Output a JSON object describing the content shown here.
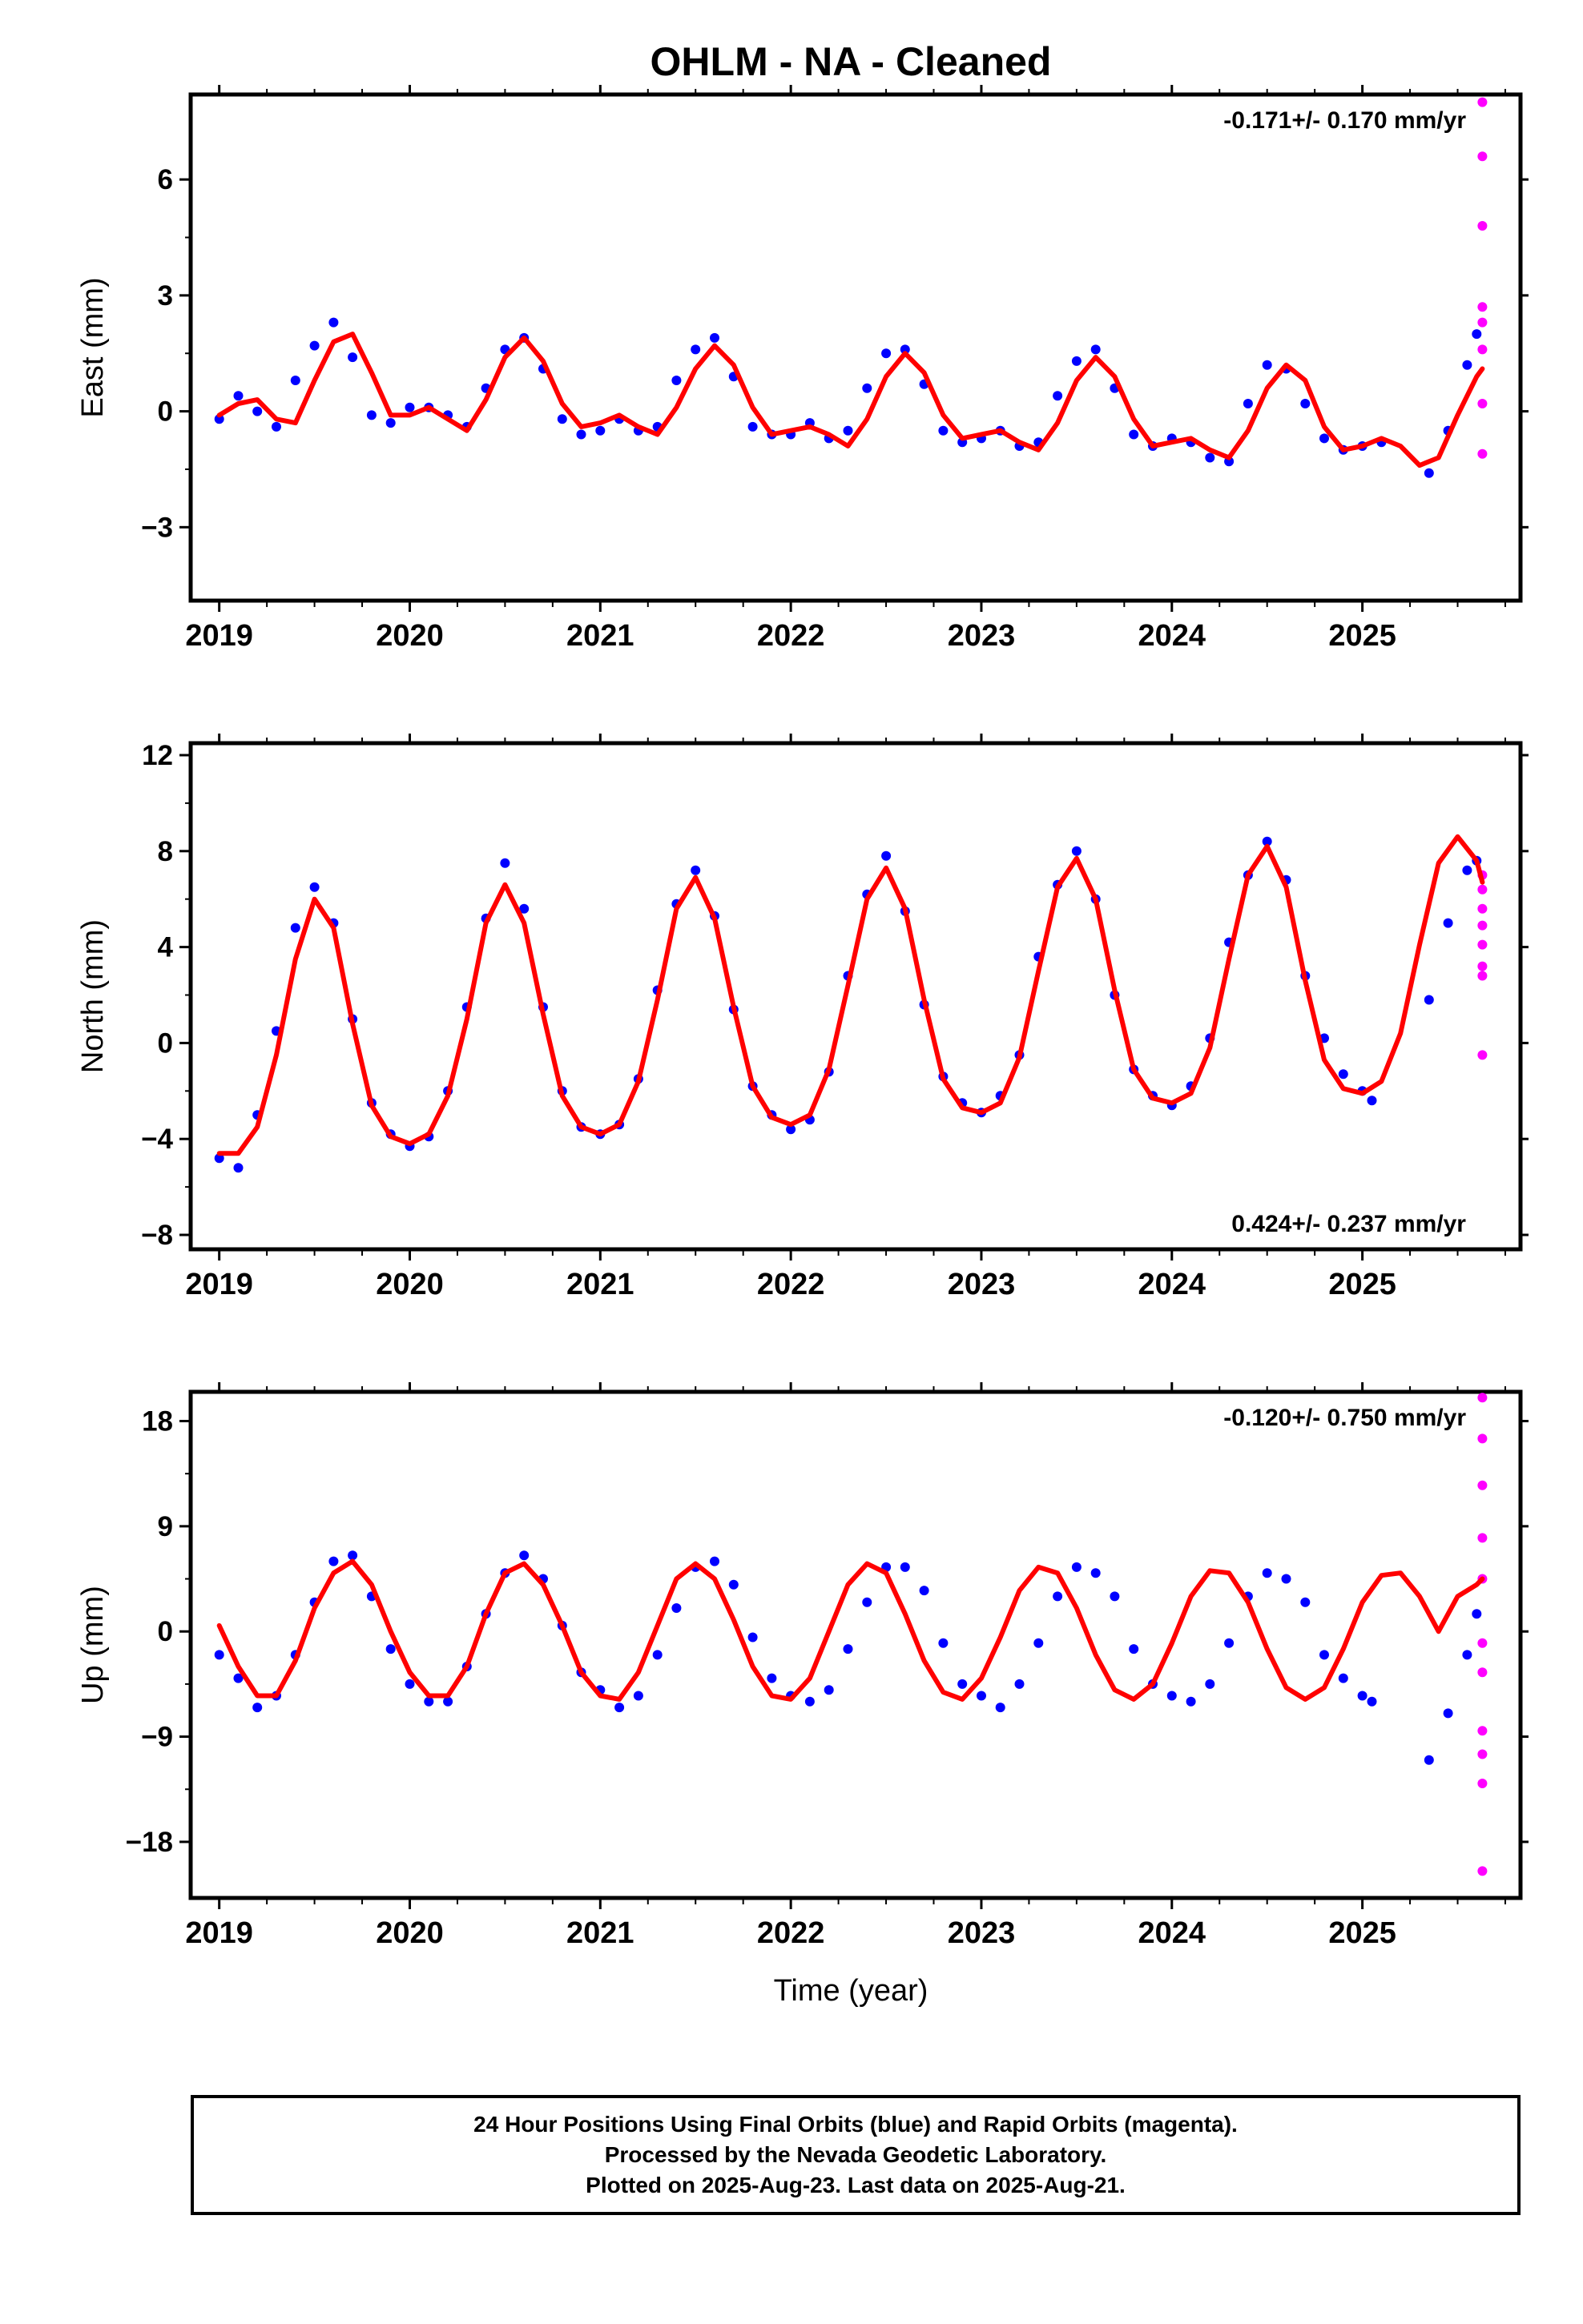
{
  "chart_data": [
    {
      "type": "scatter",
      "title": "OHLM  - NA - Cleaned",
      "ylabel": "East (mm)",
      "xlabel": "",
      "rate_label": "-0.171+/- 0.170 mm/yr",
      "xlim": [
        2018.85,
        2025.83
      ],
      "ylim": [
        -4.9,
        8.2
      ],
      "yticks": [
        -3,
        0,
        3,
        6
      ],
      "ytick_labels": [
        "−3",
        "0",
        "3",
        "6"
      ],
      "xticks": [
        2019,
        2020,
        2021,
        2022,
        2023,
        2024,
        2025
      ],
      "xtick_labels": [
        "2019",
        "2020",
        "2021",
        "2022",
        "2023",
        "2024",
        "2025"
      ],
      "series": [
        {
          "name": "Final Orbits",
          "color": "#0000ff",
          "x": [
            2019.0,
            2019.1,
            2019.2,
            2019.3,
            2019.4,
            2019.5,
            2019.6,
            2019.7,
            2019.8,
            2019.9,
            2020.0,
            2020.1,
            2020.2,
            2020.3,
            2020.4,
            2020.5,
            2020.6,
            2020.7,
            2020.8,
            2020.9,
            2021.0,
            2021.1,
            2021.2,
            2021.3,
            2021.4,
            2021.5,
            2021.6,
            2021.7,
            2021.8,
            2021.9,
            2022.0,
            2022.1,
            2022.2,
            2022.3,
            2022.4,
            2022.5,
            2022.6,
            2022.7,
            2022.8,
            2022.9,
            2023.0,
            2023.1,
            2023.2,
            2023.3,
            2023.4,
            2023.5,
            2023.6,
            2023.7,
            2023.8,
            2023.9,
            2024.0,
            2024.1,
            2024.2,
            2024.3,
            2024.4,
            2024.5,
            2024.6,
            2024.7,
            2024.8,
            2024.9,
            2025.0,
            2025.1,
            2025.35,
            2025.45,
            2025.55,
            2025.6
          ],
          "y": [
            -0.2,
            0.4,
            0.0,
            -0.4,
            0.8,
            1.7,
            2.3,
            1.4,
            -0.1,
            -0.3,
            0.1,
            0.1,
            -0.1,
            -0.4,
            0.6,
            1.6,
            1.9,
            1.1,
            -0.2,
            -0.6,
            -0.5,
            -0.2,
            -0.5,
            -0.4,
            0.8,
            1.6,
            1.9,
            0.9,
            -0.4,
            -0.6,
            -0.6,
            -0.3,
            -0.7,
            -0.5,
            0.6,
            1.5,
            1.6,
            0.7,
            -0.5,
            -0.8,
            -0.7,
            -0.5,
            -0.9,
            -0.8,
            0.4,
            1.3,
            1.6,
            0.6,
            -0.6,
            -0.9,
            -0.7,
            -0.8,
            -1.2,
            -1.3,
            0.2,
            1.2,
            1.1,
            0.2,
            -0.7,
            -1.0,
            -0.9,
            -0.8,
            -1.6,
            -0.5,
            1.2,
            2.0
          ]
        },
        {
          "name": "Rapid Orbits",
          "color": "#ff00ff",
          "x": [
            2025.63,
            2025.63,
            2025.63,
            2025.63,
            2025.63,
            2025.63,
            2025.63,
            2025.63
          ],
          "y": [
            8.0,
            6.6,
            4.8,
            2.7,
            2.3,
            1.6,
            0.2,
            -1.1
          ]
        },
        {
          "name": "Model",
          "color": "#ff0000",
          "x": [
            2019.0,
            2019.1,
            2019.2,
            2019.3,
            2019.4,
            2019.5,
            2019.6,
            2019.7,
            2019.8,
            2019.9,
            2020.0,
            2020.1,
            2020.2,
            2020.3,
            2020.4,
            2020.5,
            2020.6,
            2020.7,
            2020.8,
            2020.9,
            2021.0,
            2021.1,
            2021.2,
            2021.3,
            2021.4,
            2021.5,
            2021.6,
            2021.7,
            2021.8,
            2021.9,
            2022.0,
            2022.1,
            2022.2,
            2022.3,
            2022.4,
            2022.5,
            2022.6,
            2022.7,
            2022.8,
            2022.9,
            2023.0,
            2023.1,
            2023.2,
            2023.3,
            2023.4,
            2023.5,
            2023.6,
            2023.7,
            2023.8,
            2023.9,
            2024.0,
            2024.1,
            2024.2,
            2024.3,
            2024.4,
            2024.5,
            2024.6,
            2024.7,
            2024.8,
            2024.9,
            2025.0,
            2025.1,
            2025.2,
            2025.3,
            2025.4,
            2025.5,
            2025.6,
            2025.63
          ],
          "y": [
            -0.1,
            0.2,
            0.3,
            -0.2,
            -0.3,
            0.8,
            1.8,
            2.0,
            1.0,
            -0.1,
            -0.1,
            0.1,
            -0.2,
            -0.5,
            0.3,
            1.4,
            1.9,
            1.3,
            0.2,
            -0.4,
            -0.3,
            -0.1,
            -0.4,
            -0.6,
            0.1,
            1.1,
            1.7,
            1.2,
            0.1,
            -0.6,
            -0.5,
            -0.4,
            -0.6,
            -0.9,
            -0.2,
            0.9,
            1.5,
            1.0,
            -0.1,
            -0.7,
            -0.6,
            -0.5,
            -0.8,
            -1.0,
            -0.3,
            0.8,
            1.4,
            0.9,
            -0.2,
            -0.9,
            -0.8,
            -0.7,
            -1.0,
            -1.2,
            -0.5,
            0.6,
            1.2,
            0.8,
            -0.4,
            -1.0,
            -0.9,
            -0.7,
            -0.9,
            -1.4,
            -1.2,
            -0.1,
            0.9,
            1.1
          ]
        }
      ]
    },
    {
      "type": "scatter",
      "title": "",
      "ylabel": "North (mm)",
      "xlabel": "",
      "rate_label": "0.424+/- 0.237 mm/yr",
      "xlim": [
        2018.85,
        2025.83
      ],
      "ylim": [
        -8.6,
        12.5
      ],
      "yticks": [
        -8,
        -4,
        0,
        4,
        8,
        12
      ],
      "ytick_labels": [
        "−8",
        "−4",
        "0",
        "4",
        "8",
        "12"
      ],
      "xticks": [
        2019,
        2020,
        2021,
        2022,
        2023,
        2024,
        2025
      ],
      "xtick_labels": [
        "2019",
        "2020",
        "2021",
        "2022",
        "2023",
        "2024",
        "2025"
      ],
      "series": [
        {
          "name": "Final Orbits",
          "color": "#0000ff",
          "x": [
            2019.0,
            2019.1,
            2019.2,
            2019.3,
            2019.4,
            2019.5,
            2019.6,
            2019.7,
            2019.8,
            2019.9,
            2020.0,
            2020.1,
            2020.2,
            2020.3,
            2020.4,
            2020.5,
            2020.6,
            2020.7,
            2020.8,
            2020.9,
            2021.0,
            2021.1,
            2021.2,
            2021.3,
            2021.4,
            2021.5,
            2021.6,
            2021.7,
            2021.8,
            2021.9,
            2022.0,
            2022.1,
            2022.2,
            2022.3,
            2022.4,
            2022.5,
            2022.6,
            2022.7,
            2022.8,
            2022.9,
            2023.0,
            2023.1,
            2023.2,
            2023.3,
            2023.4,
            2023.5,
            2023.6,
            2023.7,
            2023.8,
            2023.9,
            2024.0,
            2024.1,
            2024.2,
            2024.3,
            2024.4,
            2024.5,
            2024.6,
            2024.7,
            2024.8,
            2024.9,
            2025.0,
            2025.05,
            2025.35,
            2025.45,
            2025.55,
            2025.6
          ],
          "y": [
            -4.8,
            -5.2,
            -3.0,
            0.5,
            4.8,
            6.5,
            5.0,
            1.0,
            -2.5,
            -3.8,
            -4.3,
            -3.9,
            -2.0,
            1.5,
            5.2,
            7.5,
            5.6,
            1.5,
            -2.0,
            -3.5,
            -3.8,
            -3.4,
            -1.5,
            2.2,
            5.8,
            7.2,
            5.3,
            1.4,
            -1.8,
            -3.0,
            -3.6,
            -3.2,
            -1.2,
            2.8,
            6.2,
            7.8,
            5.5,
            1.6,
            -1.4,
            -2.5,
            -2.9,
            -2.2,
            -0.5,
            3.6,
            6.6,
            8.0,
            6.0,
            2.0,
            -1.1,
            -2.2,
            -2.6,
            -1.8,
            0.2,
            4.2,
            7.0,
            8.4,
            6.8,
            2.8,
            0.2,
            -1.3,
            -2.0,
            -2.4,
            1.8,
            5.0,
            7.2,
            7.6
          ]
        },
        {
          "name": "Rapid Orbits",
          "color": "#ff00ff",
          "x": [
            2025.63,
            2025.63,
            2025.63,
            2025.63,
            2025.63,
            2025.63,
            2025.63,
            2025.63
          ],
          "y": [
            7.0,
            6.4,
            5.6,
            4.9,
            4.1,
            3.2,
            2.8,
            -0.5
          ]
        },
        {
          "name": "Model",
          "color": "#ff0000",
          "x": [
            2019.0,
            2019.1,
            2019.2,
            2019.3,
            2019.4,
            2019.5,
            2019.6,
            2019.7,
            2019.8,
            2019.9,
            2020.0,
            2020.1,
            2020.2,
            2020.3,
            2020.4,
            2020.5,
            2020.6,
            2020.7,
            2020.8,
            2020.9,
            2021.0,
            2021.1,
            2021.2,
            2021.3,
            2021.4,
            2021.5,
            2021.6,
            2021.7,
            2021.8,
            2021.9,
            2022.0,
            2022.1,
            2022.2,
            2022.3,
            2022.4,
            2022.5,
            2022.6,
            2022.7,
            2022.8,
            2022.9,
            2023.0,
            2023.1,
            2023.2,
            2023.3,
            2023.4,
            2023.5,
            2023.6,
            2023.7,
            2023.8,
            2023.9,
            2024.0,
            2024.1,
            2024.2,
            2024.3,
            2024.4,
            2024.5,
            2024.6,
            2024.7,
            2024.8,
            2024.9,
            2025.0,
            2025.1,
            2025.2,
            2025.3,
            2025.4,
            2025.5,
            2025.6,
            2025.63
          ],
          "y": [
            -4.6,
            -4.6,
            -3.5,
            -0.5,
            3.5,
            6.0,
            4.8,
            0.8,
            -2.6,
            -3.9,
            -4.2,
            -3.8,
            -2.2,
            1.0,
            5.0,
            6.6,
            5.0,
            1.2,
            -2.2,
            -3.5,
            -3.8,
            -3.4,
            -1.6,
            1.8,
            5.6,
            6.9,
            5.2,
            1.5,
            -1.8,
            -3.1,
            -3.4,
            -3.0,
            -1.1,
            2.4,
            6.0,
            7.3,
            5.6,
            1.8,
            -1.5,
            -2.7,
            -2.9,
            -2.5,
            -0.6,
            3.0,
            6.5,
            7.7,
            6.0,
            2.2,
            -1.1,
            -2.3,
            -2.5,
            -2.1,
            -0.2,
            3.5,
            7.0,
            8.2,
            6.5,
            2.6,
            -0.7,
            -1.9,
            -2.1,
            -1.6,
            0.4,
            4.1,
            7.5,
            8.6,
            7.6,
            6.7
          ]
        }
      ]
    },
    {
      "type": "scatter",
      "title": "",
      "ylabel": "Up (mm)",
      "xlabel": "Time (year)",
      "rate_label": "-0.120+/- 0.750 mm/yr",
      "xlim": [
        2018.85,
        2025.83
      ],
      "ylim": [
        -22.8,
        20.5
      ],
      "yticks": [
        -18,
        -9,
        0,
        9,
        18
      ],
      "ytick_labels": [
        "−18",
        "−9",
        "0",
        "9",
        "18"
      ],
      "xticks": [
        2019,
        2020,
        2021,
        2022,
        2023,
        2024,
        2025
      ],
      "xtick_labels": [
        "2019",
        "2020",
        "2021",
        "2022",
        "2023",
        "2024",
        "2025"
      ],
      "series": [
        {
          "name": "Final Orbits",
          "color": "#0000ff",
          "x": [
            2019.0,
            2019.1,
            2019.2,
            2019.3,
            2019.4,
            2019.5,
            2019.6,
            2019.7,
            2019.8,
            2019.9,
            2020.0,
            2020.1,
            2020.2,
            2020.3,
            2020.4,
            2020.5,
            2020.6,
            2020.7,
            2020.8,
            2020.9,
            2021.0,
            2021.1,
            2021.2,
            2021.3,
            2021.4,
            2021.5,
            2021.6,
            2021.7,
            2021.8,
            2021.9,
            2022.0,
            2022.1,
            2022.2,
            2022.3,
            2022.4,
            2022.5,
            2022.6,
            2022.7,
            2022.8,
            2022.9,
            2023.0,
            2023.1,
            2023.2,
            2023.3,
            2023.4,
            2023.5,
            2023.6,
            2023.7,
            2023.8,
            2023.9,
            2024.0,
            2024.1,
            2024.2,
            2024.3,
            2024.4,
            2024.5,
            2024.6,
            2024.7,
            2024.8,
            2024.9,
            2025.0,
            2025.05,
            2025.35,
            2025.45,
            2025.55,
            2025.6
          ],
          "y": [
            -2.0,
            -4.0,
            -6.5,
            -5.5,
            -2.0,
            2.5,
            6.0,
            6.5,
            3.0,
            -1.5,
            -4.5,
            -6.0,
            -6.0,
            -3.0,
            1.5,
            5.0,
            6.5,
            4.5,
            0.5,
            -3.5,
            -5.0,
            -6.5,
            -5.5,
            -2.0,
            2.0,
            5.5,
            6.0,
            4.0,
            -0.5,
            -4.0,
            -5.5,
            -6.0,
            -5.0,
            -1.5,
            2.5,
            5.5,
            5.5,
            3.5,
            -1.0,
            -4.5,
            -5.5,
            -6.5,
            -4.5,
            -1.0,
            3.0,
            5.5,
            5.0,
            3.0,
            -1.5,
            -4.5,
            -5.5,
            -6.0,
            -4.5,
            -1.0,
            3.0,
            5.0,
            4.5,
            2.5,
            -2.0,
            -4.0,
            -5.5,
            -6.0,
            -11.0,
            -7.0,
            -2.0,
            1.5
          ]
        },
        {
          "name": "Rapid Orbits",
          "color": "#ff00ff",
          "x": [
            2025.63,
            2025.63,
            2025.63,
            2025.63,
            2025.63,
            2025.63,
            2025.63,
            2025.63,
            2025.63,
            2025.63,
            2025.63
          ],
          "y": [
            20.0,
            16.5,
            12.5,
            8.0,
            4.5,
            -3.5,
            -8.5,
            -10.5,
            -13.0,
            -20.5,
            -1.0
          ]
        },
        {
          "name": "Model",
          "color": "#ff0000",
          "x": [
            2019.0,
            2019.1,
            2019.2,
            2019.3,
            2019.4,
            2019.5,
            2019.6,
            2019.7,
            2019.8,
            2019.9,
            2020.0,
            2020.1,
            2020.2,
            2020.3,
            2020.4,
            2020.5,
            2020.6,
            2020.7,
            2020.8,
            2020.9,
            2021.0,
            2021.1,
            2021.2,
            2021.3,
            2021.4,
            2021.5,
            2021.6,
            2021.7,
            2021.8,
            2021.9,
            2022.0,
            2022.1,
            2022.2,
            2022.3,
            2022.4,
            2022.5,
            2022.6,
            2022.7,
            2022.8,
            2022.9,
            2023.0,
            2023.1,
            2023.2,
            2023.3,
            2023.4,
            2023.5,
            2023.6,
            2023.7,
            2023.8,
            2023.9,
            2024.0,
            2024.1,
            2024.2,
            2024.3,
            2024.4,
            2024.5,
            2024.6,
            2024.7,
            2024.8,
            2024.9,
            2025.0,
            2025.1,
            2025.2,
            2025.3,
            2025.4,
            2025.5,
            2025.6,
            2025.63
          ],
          "y": [
            0.5,
            -3.0,
            -5.5,
            -5.5,
            -2.5,
            2.0,
            5.0,
            6.0,
            4.0,
            0.0,
            -3.5,
            -5.5,
            -5.5,
            -3.0,
            1.5,
            5.0,
            5.8,
            4.0,
            0.5,
            -3.5,
            -5.5,
            -5.8,
            -3.5,
            0.5,
            4.5,
            5.8,
            4.5,
            1.0,
            -3.0,
            -5.5,
            -5.8,
            -4.0,
            0.0,
            4.0,
            5.8,
            5.0,
            1.5,
            -2.5,
            -5.2,
            -5.8,
            -4.0,
            -0.5,
            3.5,
            5.5,
            5.0,
            2.0,
            -2.0,
            -5.0,
            -5.8,
            -4.5,
            -1.0,
            3.0,
            5.2,
            5.0,
            2.5,
            -1.5,
            -4.8,
            -5.8,
            -4.8,
            -1.5,
            2.5,
            4.8,
            5.0,
            3.0,
            0.0,
            3.0,
            4.0,
            4.5
          ]
        }
      ]
    }
  ],
  "footer": {
    "line1": "24 Hour Positions Using Final Orbits (blue) and Rapid Orbits (magenta).",
    "line2": "Processed by the Nevada Geodetic Laboratory.",
    "line3": "Plotted on 2025-Aug-23. Last data on 2025-Aug-21."
  }
}
